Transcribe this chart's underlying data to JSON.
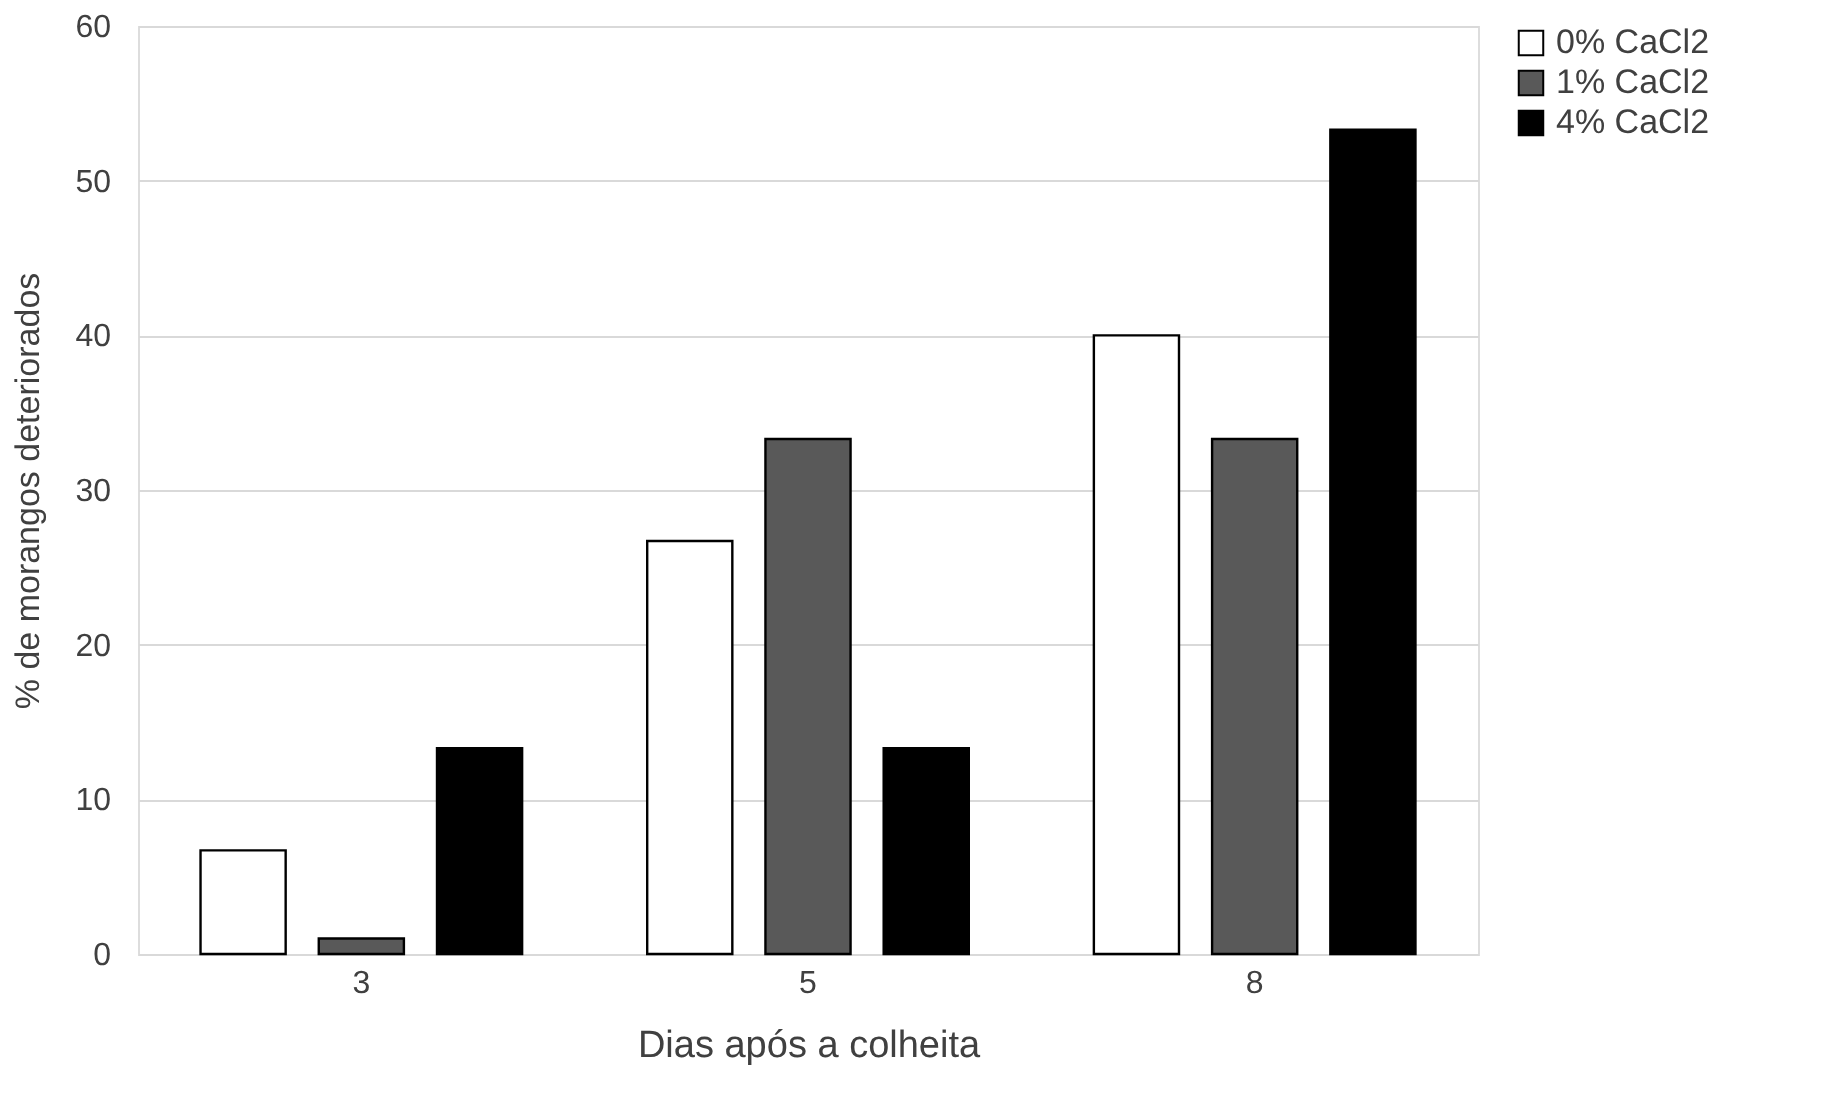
{
  "chart_data": {
    "type": "bar",
    "xlabel": "Dias após a colheita",
    "ylabel": "% de morangos deteriorados",
    "categories": [
      "3",
      "5",
      "8"
    ],
    "series": [
      {
        "name": "0% CaCl2",
        "color": "#ffffff",
        "values": [
          6.7,
          26.7,
          40
        ]
      },
      {
        "name": "1% CaCl2",
        "color": "#595959",
        "values": [
          1,
          33.3,
          33.3
        ]
      },
      {
        "name": "4% CaCl2",
        "color": "#000000",
        "values": [
          13.3,
          13.3,
          53.3
        ]
      }
    ],
    "ylim": [
      0,
      60
    ],
    "yticks": [
      0,
      10,
      20,
      30,
      40,
      50,
      60
    ],
    "grid": "y",
    "legend": "right"
  }
}
